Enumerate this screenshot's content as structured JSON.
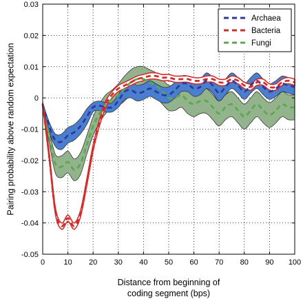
{
  "colors": {
    "archaea": "#2b3a9c",
    "archaea_band": "#4a7fd0",
    "bacteria": "#d42a2a",
    "bacteria_band": "#ffffff",
    "fungi": "#5aa94e",
    "fungi_band": "#93b38c"
  },
  "chart_data": {
    "type": "line",
    "title": "",
    "xlabel_lines": [
      "Distance from beginning of",
      "coding segment (bps)"
    ],
    "ylabel": "Pairing probability above random expectation",
    "xlim": [
      0,
      100
    ],
    "ylim": [
      -0.05,
      0.03
    ],
    "x_ticks": [
      "0",
      "10",
      "20",
      "30",
      "40",
      "50",
      "60",
      "70",
      "80",
      "90",
      "100"
    ],
    "y_ticks": [
      "0.03",
      "0.02",
      "0.01",
      "0",
      "-0.01",
      "-0.02",
      "-0.03",
      "-0.04",
      "-0.05"
    ],
    "grid": true,
    "legend_position": "top-right",
    "x": [
      0,
      2.5,
      5,
      7.5,
      10,
      12.5,
      15,
      17.5,
      20,
      22.5,
      25,
      27.5,
      30,
      32.5,
      35,
      37.5,
      40,
      42.5,
      45,
      47.5,
      50,
      52.5,
      55,
      57.5,
      60,
      62.5,
      65,
      67.5,
      70,
      72.5,
      75,
      77.5,
      80,
      82.5,
      85,
      87.5,
      90,
      92.5,
      95,
      97.5,
      100
    ],
    "series": [
      {
        "name": "Archaea",
        "color_key": "archaea",
        "values": [
          -0.002,
          -0.009,
          -0.0135,
          -0.014,
          -0.012,
          -0.011,
          -0.009,
          -0.006,
          -0.003,
          -0.0025,
          -0.003,
          -0.003,
          -0.001,
          0.002,
          0.0025,
          0.0015,
          0.002,
          0.003,
          0.002,
          0.001,
          0.001,
          0.0025,
          0.0045,
          0.0045,
          0.003,
          0.0035,
          0.0055,
          0.004,
          0.0015,
          0.0035,
          0.0055,
          0.004,
          0.002,
          0.004,
          0.0055,
          0.0035,
          0.002,
          0.003,
          0.0045,
          0.004,
          0.0035
        ],
        "band_half_width": [
          0.0005,
          0.0015,
          0.002,
          0.0025,
          0.0025,
          0.0025,
          0.0025,
          0.0025,
          0.0015,
          0.0015,
          0.0015,
          0.0015,
          0.002,
          0.0025,
          0.0025,
          0.0025,
          0.0025,
          0.0025,
          0.0025,
          0.0025,
          0.0025,
          0.0025,
          0.0025,
          0.0025,
          0.0025,
          0.0025,
          0.0025,
          0.0025,
          0.0025,
          0.0025,
          0.0025,
          0.0025,
          0.0025,
          0.0025,
          0.0025,
          0.0025,
          0.0025,
          0.0025,
          0.0025,
          0.0025,
          0.0025
        ]
      },
      {
        "name": "Bacteria",
        "color_key": "bacteria",
        "values": [
          -0.002,
          -0.018,
          -0.036,
          -0.041,
          -0.0385,
          -0.041,
          -0.037,
          -0.027,
          -0.016,
          -0.008,
          -0.002,
          0.001,
          0.003,
          0.004,
          0.005,
          0.006,
          0.0065,
          0.007,
          0.007,
          0.0065,
          0.0065,
          0.006,
          0.006,
          0.006,
          0.0055,
          0.0055,
          0.006,
          0.006,
          0.005,
          0.005,
          0.006,
          0.0055,
          0.004,
          0.0035,
          0.005,
          0.005,
          0.0035,
          0.0035,
          0.005,
          0.0055,
          0.005
        ],
        "band_half_width": [
          0.0005,
          0.001,
          0.001,
          0.001,
          0.001,
          0.001,
          0.001,
          0.001,
          0.001,
          0.001,
          0.001,
          0.001,
          0.001,
          0.001,
          0.001,
          0.001,
          0.001,
          0.001,
          0.001,
          0.001,
          0.001,
          0.001,
          0.001,
          0.001,
          0.001,
          0.001,
          0.001,
          0.001,
          0.001,
          0.001,
          0.001,
          0.001,
          0.001,
          0.001,
          0.001,
          0.001,
          0.001,
          0.001,
          0.001,
          0.001,
          0.001
        ]
      },
      {
        "name": "Fungi",
        "color_key": "fungi",
        "values": [
          -0.002,
          -0.012,
          -0.021,
          -0.022,
          -0.0205,
          -0.023,
          -0.021,
          -0.015,
          -0.009,
          -0.005,
          -0.002,
          -0.0005,
          0.001,
          0.003,
          0.005,
          0.006,
          0.006,
          0.005,
          0.004,
          0.002,
          0.0,
          0.0,
          0.001,
          -0.001,
          -0.002,
          -0.001,
          -0.001,
          -0.003,
          -0.005,
          -0.003,
          -0.002,
          -0.004,
          -0.006,
          -0.004,
          -0.002,
          -0.004,
          -0.0055,
          -0.004,
          -0.002,
          -0.003,
          -0.003
        ],
        "band_half_width": [
          0.0005,
          0.002,
          0.003,
          0.0035,
          0.0035,
          0.0035,
          0.0035,
          0.003,
          0.003,
          0.003,
          0.003,
          0.003,
          0.0035,
          0.004,
          0.004,
          0.004,
          0.004,
          0.004,
          0.004,
          0.004,
          0.004,
          0.004,
          0.004,
          0.004,
          0.004,
          0.004,
          0.004,
          0.004,
          0.004,
          0.004,
          0.004,
          0.004,
          0.004,
          0.004,
          0.004,
          0.004,
          0.004,
          0.004,
          0.004,
          0.004,
          0.004
        ]
      }
    ]
  }
}
